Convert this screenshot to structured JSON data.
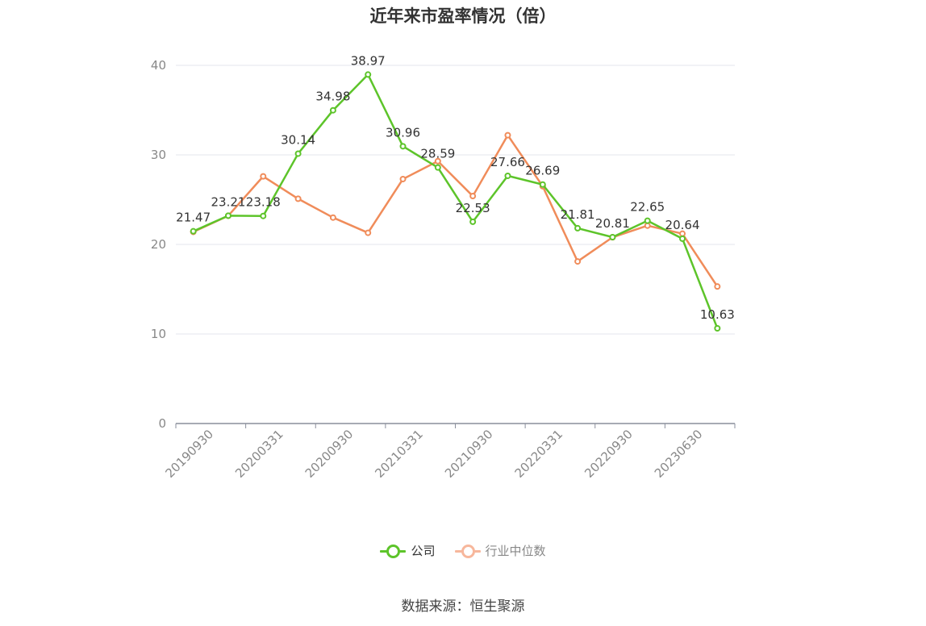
{
  "chart_data": {
    "type": "line",
    "title": "近年来市盈率情况（倍）",
    "x_tick_labels": [
      "20190930",
      "20200331",
      "20200930",
      "20210331",
      "20210930",
      "20220331",
      "20220930",
      "20230630"
    ],
    "ylim": [
      0,
      40
    ],
    "yticks": [
      0,
      10,
      20,
      30,
      40
    ],
    "grid": true,
    "legend_position": "bottom",
    "series": [
      {
        "name": "公司",
        "color": "#5dc42a",
        "values": [
          21.47,
          23.21,
          23.18,
          30.14,
          34.98,
          38.97,
          30.96,
          28.59,
          22.53,
          27.66,
          26.69,
          21.81,
          20.81,
          22.65,
          20.64,
          10.63
        ],
        "labels": [
          "21.47",
          "23.21",
          "23.18",
          "30.14",
          "34.98",
          "38.97",
          "30.96",
          "28.59",
          "22.53",
          "27.66",
          "26.69",
          "21.81",
          "20.81",
          "22.65",
          "20.64",
          "10.63"
        ]
      },
      {
        "name": "行业中位数",
        "color": "#f08c5a",
        "values": [
          21.4,
          23.2,
          27.6,
          25.1,
          23.0,
          21.3,
          27.3,
          29.3,
          25.4,
          32.2,
          26.5,
          18.1,
          20.8,
          22.1,
          21.2,
          15.3
        ]
      }
    ]
  },
  "legend": {
    "company_label": "公司",
    "industry_label": "行业中位数",
    "company_color": "#5dc42a",
    "industry_color": "#f7b79c"
  },
  "source": "数据来源：恒生聚源"
}
